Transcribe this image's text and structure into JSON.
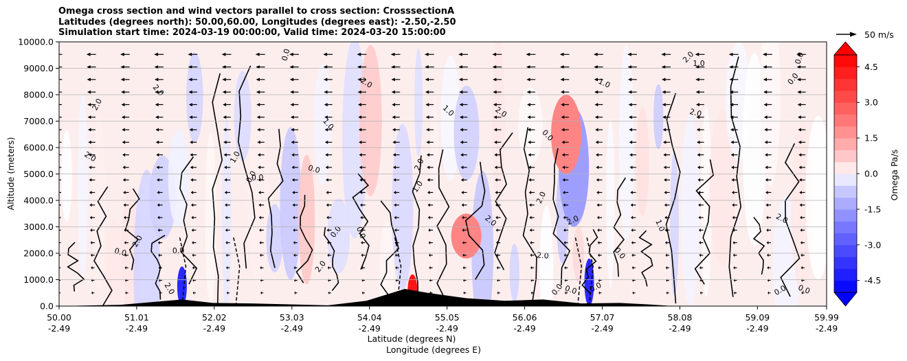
{
  "chart_data": {
    "type": "contourf",
    "title": [
      "Omega cross section and wind vectors parallel to cross section: CrosssectionA",
      "Latitudes (degrees north): 50.00,60.00, Longitudes (degrees east): -2.50,-2.50",
      "Simulation start time: 2024-03-19 00:00:00, Valid time: 2024-03-20 15:00:00"
    ],
    "xlabel": [
      "Latitude (degrees N)",
      "Longitude (degrees E)"
    ],
    "ylabel": "Altitude (meters)",
    "ylim": [
      0,
      10000
    ],
    "xlim": [
      50.0,
      59.99
    ],
    "y_ticks": [
      "0.0",
      "1000.0",
      "2000.0",
      "3000.0",
      "4000.0",
      "5000.0",
      "6000.0",
      "7000.0",
      "8000.0",
      "9000.0",
      "10000.0"
    ],
    "x_ticks": [
      {
        "lat": "50.00",
        "lon": "-2.49"
      },
      {
        "lat": "51.01",
        "lon": "-2.49"
      },
      {
        "lat": "52.02",
        "lon": "-2.49"
      },
      {
        "lat": "53.03",
        "lon": "-2.49"
      },
      {
        "lat": "54.04",
        "lon": "-2.49"
      },
      {
        "lat": "55.05",
        "lon": "-2.49"
      },
      {
        "lat": "56.06",
        "lon": "-2.49"
      },
      {
        "lat": "57.07",
        "lon": "-2.49"
      },
      {
        "lat": "58.08",
        "lon": "-2.49"
      },
      {
        "lat": "59.09",
        "lon": "-2.49"
      },
      {
        "lat": "59.99",
        "lon": "-2.49"
      }
    ],
    "colorbar": {
      "label": "Omega Pa/s",
      "ticks": [
        "4.5",
        "3.0",
        "1.5",
        "0.0",
        "-1.5",
        "-3.0",
        "-4.5"
      ],
      "range": [
        -5.0,
        5.0
      ]
    },
    "quiver_key": "50 m/s",
    "contour_labels": [
      "0.0",
      "1.0",
      "2.0",
      "-1.0"
    ],
    "features": [
      {
        "lat": 51.6,
        "alt_min": 0,
        "alt_max": 1500,
        "omega": -4
      },
      {
        "lat": 54.6,
        "alt_min": 0,
        "alt_max": 1200,
        "omega": 4.5
      },
      {
        "lat": 55.3,
        "alt_min": 1800,
        "alt_max": 3500,
        "omega": 2.0
      },
      {
        "lat": 56.7,
        "alt_min": 3000,
        "alt_max": 7500,
        "omega": -1.5
      },
      {
        "lat": 56.6,
        "alt_min": 5000,
        "alt_max": 8000,
        "omega": 2.0
      },
      {
        "lat": 56.9,
        "alt_min": 0,
        "alt_max": 1800,
        "omega": -4
      }
    ],
    "terrain": [
      {
        "lat": 50.0,
        "alt": 0
      },
      {
        "lat": 50.8,
        "alt": 50
      },
      {
        "lat": 51.2,
        "alt": 150
      },
      {
        "lat": 51.6,
        "alt": 250
      },
      {
        "lat": 52.0,
        "alt": 120
      },
      {
        "lat": 52.5,
        "alt": 100
      },
      {
        "lat": 53.1,
        "alt": 60
      },
      {
        "lat": 53.5,
        "alt": 30
      },
      {
        "lat": 54.0,
        "alt": 200
      },
      {
        "lat": 54.5,
        "alt": 650
      },
      {
        "lat": 54.8,
        "alt": 500
      },
      {
        "lat": 55.3,
        "alt": 300
      },
      {
        "lat": 55.8,
        "alt": 200
      },
      {
        "lat": 56.3,
        "alt": 250
      },
      {
        "lat": 56.8,
        "alt": 100
      },
      {
        "lat": 57.3,
        "alt": 120
      },
      {
        "lat": 57.7,
        "alt": 60
      },
      {
        "lat": 58.0,
        "alt": 0
      },
      {
        "lat": 59.99,
        "alt": 0
      }
    ]
  }
}
